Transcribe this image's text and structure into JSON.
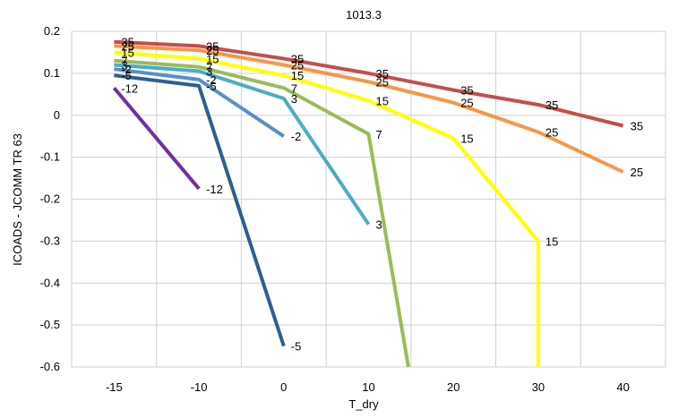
{
  "chart_data": {
    "type": "line",
    "title": "1013.3",
    "xlabel": "T_dry",
    "ylabel": "ICOADS - JCOMM TR 63",
    "categories": [
      "-15",
      "-10",
      "0",
      "10",
      "20",
      "30",
      "40"
    ],
    "ylim": [
      -0.6,
      0.2
    ],
    "yticks": [
      "0.2",
      "0.1",
      "0",
      "-0.1",
      "-0.2",
      "-0.3",
      "-0.4",
      "-0.5",
      "-0.6"
    ],
    "grid": true,
    "legend": "none",
    "series": [
      {
        "name": "35",
        "color": "#c0504d",
        "points": [
          [
            0,
            0.175
          ],
          [
            1,
            0.165
          ],
          [
            2,
            0.135
          ],
          [
            3,
            0.1
          ],
          [
            4,
            0.06
          ],
          [
            5,
            0.025
          ],
          [
            6,
            -0.025
          ]
        ],
        "labels": [
          "35",
          "35",
          "35",
          "35",
          "35",
          "35",
          "35"
        ]
      },
      {
        "name": "25",
        "color": "#f79646",
        "points": [
          [
            0,
            0.165
          ],
          [
            1,
            0.155
          ],
          [
            2,
            0.12
          ],
          [
            3,
            0.08
          ],
          [
            4,
            0.03
          ],
          [
            5,
            -0.04
          ],
          [
            6,
            -0.135
          ]
        ],
        "labels": [
          "25",
          "25",
          "25",
          "25",
          "25",
          "25",
          "25"
        ]
      },
      {
        "name": "15",
        "color": "#ffff00",
        "points": [
          [
            0,
            0.15
          ],
          [
            1,
            0.135
          ],
          [
            2,
            0.095
          ],
          [
            3,
            0.035
          ],
          [
            4,
            -0.055
          ],
          [
            5,
            -0.3
          ],
          [
            5,
            -0.6
          ]
        ],
        "labels": [
          "15",
          "15",
          "15",
          "15",
          "15",
          "15",
          ""
        ]
      },
      {
        "name": "7",
        "color": "#9bbb59",
        "points": [
          [
            0,
            0.13
          ],
          [
            1,
            0.115
          ],
          [
            2,
            0.065
          ],
          [
            3,
            -0.045
          ],
          [
            3.47,
            -0.6
          ]
        ],
        "labels": [
          "7",
          "7",
          "7",
          "7",
          ""
        ]
      },
      {
        "name": "3",
        "color": "#4bacc6",
        "points": [
          [
            0,
            0.12
          ],
          [
            1,
            0.105
          ],
          [
            2,
            0.04
          ],
          [
            3,
            -0.26
          ]
        ],
        "labels": [
          "3",
          "3",
          "3",
          "3"
        ]
      },
      {
        "name": "-2",
        "color": "#5b8ec9",
        "points": [
          [
            0,
            0.11
          ],
          [
            1,
            0.085
          ],
          [
            2,
            -0.05
          ]
        ],
        "labels": [
          "-2",
          "-2",
          "-2"
        ]
      },
      {
        "name": "-5",
        "color": "#2e5f8f",
        "points": [
          [
            0,
            0.095
          ],
          [
            1,
            0.07
          ],
          [
            2,
            -0.55
          ]
        ],
        "labels": [
          "-5",
          "-5",
          "-5"
        ]
      },
      {
        "name": "-12",
        "color": "#7030a0",
        "points": [
          [
            0,
            0.065
          ],
          [
            1,
            -0.175
          ]
        ],
        "labels": [
          "-12",
          "-12"
        ]
      }
    ]
  }
}
